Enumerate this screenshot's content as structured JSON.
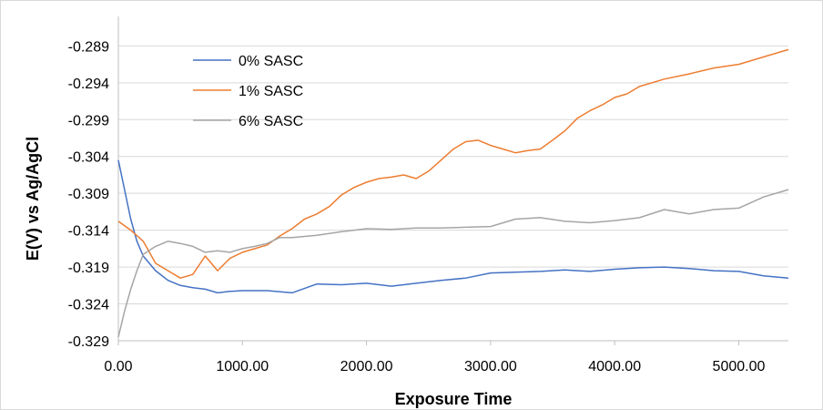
{
  "chart_data": {
    "type": "line",
    "title": "",
    "xlabel": "Exposure Time",
    "ylabel": "E(V) vs Ag/AgCl",
    "xlim": [
      0,
      5400
    ],
    "ylim": [
      -0.329,
      -0.285
    ],
    "x_ticks": [
      "0.00",
      "1000.00",
      "2000.00",
      "3000.00",
      "4000.00",
      "5000.00"
    ],
    "y_ticks": [
      "-0.289",
      "-0.294",
      "-0.299",
      "-0.304",
      "-0.309",
      "-0.314",
      "-0.319",
      "-0.324",
      "-0.329"
    ],
    "grid": true,
    "legend_position": "top-left",
    "series": [
      {
        "name": "0% SASC",
        "color": "#4472C4",
        "points": [
          [
            0,
            -0.3045
          ],
          [
            50,
            -0.3085
          ],
          [
            100,
            -0.3125
          ],
          [
            150,
            -0.3155
          ],
          [
            200,
            -0.3175
          ],
          [
            300,
            -0.3195
          ],
          [
            400,
            -0.3208
          ],
          [
            500,
            -0.3215
          ],
          [
            600,
            -0.3218
          ],
          [
            700,
            -0.322
          ],
          [
            800,
            -0.3225
          ],
          [
            900,
            -0.3223
          ],
          [
            1000,
            -0.3222
          ],
          [
            1200,
            -0.3222
          ],
          [
            1400,
            -0.3225
          ],
          [
            1600,
            -0.3213
          ],
          [
            1800,
            -0.3214
          ],
          [
            2000,
            -0.3212
          ],
          [
            2200,
            -0.3216
          ],
          [
            2400,
            -0.3212
          ],
          [
            2600,
            -0.3208
          ],
          [
            2800,
            -0.3205
          ],
          [
            3000,
            -0.3198
          ],
          [
            3200,
            -0.3197
          ],
          [
            3400,
            -0.3196
          ],
          [
            3600,
            -0.3194
          ],
          [
            3800,
            -0.3196
          ],
          [
            4000,
            -0.3193
          ],
          [
            4200,
            -0.3191
          ],
          [
            4400,
            -0.319
          ],
          [
            4600,
            -0.3192
          ],
          [
            4800,
            -0.3195
          ],
          [
            5000,
            -0.3196
          ],
          [
            5200,
            -0.3202
          ],
          [
            5400,
            -0.3205
          ]
        ]
      },
      {
        "name": "1% SASC",
        "color": "#ED7D31",
        "points": [
          [
            0,
            -0.3128
          ],
          [
            100,
            -0.314
          ],
          [
            200,
            -0.3155
          ],
          [
            300,
            -0.3185
          ],
          [
            400,
            -0.3195
          ],
          [
            500,
            -0.3205
          ],
          [
            600,
            -0.32
          ],
          [
            700,
            -0.3175
          ],
          [
            800,
            -0.3195
          ],
          [
            900,
            -0.3178
          ],
          [
            1000,
            -0.317
          ],
          [
            1100,
            -0.3165
          ],
          [
            1200,
            -0.316
          ],
          [
            1300,
            -0.3148
          ],
          [
            1400,
            -0.3138
          ],
          [
            1500,
            -0.3125
          ],
          [
            1600,
            -0.3118
          ],
          [
            1700,
            -0.3108
          ],
          [
            1800,
            -0.3092
          ],
          [
            1900,
            -0.3082
          ],
          [
            2000,
            -0.3075
          ],
          [
            2100,
            -0.307
          ],
          [
            2200,
            -0.3068
          ],
          [
            2300,
            -0.3065
          ],
          [
            2400,
            -0.307
          ],
          [
            2500,
            -0.306
          ],
          [
            2600,
            -0.3045
          ],
          [
            2700,
            -0.303
          ],
          [
            2800,
            -0.302
          ],
          [
            2900,
            -0.3018
          ],
          [
            3000,
            -0.3025
          ],
          [
            3100,
            -0.303
          ],
          [
            3200,
            -0.3035
          ],
          [
            3300,
            -0.3032
          ],
          [
            3400,
            -0.303
          ],
          [
            3500,
            -0.3018
          ],
          [
            3600,
            -0.3005
          ],
          [
            3700,
            -0.2988
          ],
          [
            3800,
            -0.2978
          ],
          [
            3900,
            -0.297
          ],
          [
            4000,
            -0.296
          ],
          [
            4100,
            -0.2955
          ],
          [
            4200,
            -0.2945
          ],
          [
            4400,
            -0.2935
          ],
          [
            4600,
            -0.2928
          ],
          [
            4800,
            -0.292
          ],
          [
            5000,
            -0.2915
          ],
          [
            5200,
            -0.2905
          ],
          [
            5400,
            -0.2895
          ]
        ]
      },
      {
        "name": "6% SASC",
        "color": "#A5A5A5",
        "points": [
          [
            0,
            -0.3285
          ],
          [
            50,
            -0.325
          ],
          [
            100,
            -0.322
          ],
          [
            150,
            -0.3195
          ],
          [
            200,
            -0.3173
          ],
          [
            300,
            -0.3162
          ],
          [
            400,
            -0.3155
          ],
          [
            500,
            -0.3158
          ],
          [
            600,
            -0.3162
          ],
          [
            700,
            -0.317
          ],
          [
            800,
            -0.3168
          ],
          [
            900,
            -0.317
          ],
          [
            1000,
            -0.3165
          ],
          [
            1100,
            -0.3162
          ],
          [
            1200,
            -0.3158
          ],
          [
            1300,
            -0.315
          ],
          [
            1400,
            -0.315
          ],
          [
            1600,
            -0.3147
          ],
          [
            1800,
            -0.3142
          ],
          [
            2000,
            -0.3138
          ],
          [
            2200,
            -0.3139
          ],
          [
            2400,
            -0.3137
          ],
          [
            2600,
            -0.3137
          ],
          [
            2800,
            -0.3136
          ],
          [
            3000,
            -0.3135
          ],
          [
            3200,
            -0.3125
          ],
          [
            3400,
            -0.3123
          ],
          [
            3600,
            -0.3128
          ],
          [
            3800,
            -0.313
          ],
          [
            4000,
            -0.3127
          ],
          [
            4200,
            -0.3123
          ],
          [
            4400,
            -0.3112
          ],
          [
            4600,
            -0.3118
          ],
          [
            4800,
            -0.3112
          ],
          [
            5000,
            -0.311
          ],
          [
            5200,
            -0.3095
          ],
          [
            5400,
            -0.3085
          ]
        ]
      }
    ]
  }
}
